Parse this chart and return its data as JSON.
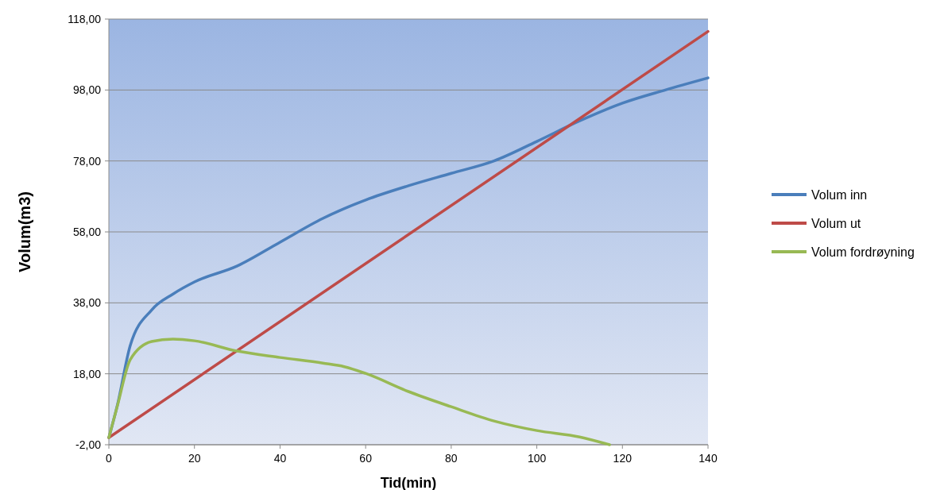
{
  "chart_data": {
    "type": "line",
    "xlabel": "Tid(min)",
    "ylabel": "Volum(m3)",
    "xlim": [
      0,
      140
    ],
    "xticks": [
      0,
      20,
      40,
      60,
      80,
      100,
      120,
      140
    ],
    "ylim": [
      -2,
      118
    ],
    "yticks": [
      {
        "value": -2,
        "label": "-2,00"
      },
      {
        "value": 18,
        "label": "18,00"
      },
      {
        "value": 38,
        "label": "38,00"
      },
      {
        "value": 58,
        "label": "58,00"
      },
      {
        "value": 78,
        "label": "78,00"
      },
      {
        "value": 98,
        "label": "98,00"
      },
      {
        "value": 118,
        "label": "118,00"
      }
    ],
    "grid": "y",
    "legend": "right",
    "marker": "none",
    "line_style": "solid",
    "series": [
      {
        "name": "Volum inn",
        "color": "#4a7ebb",
        "x": [
          0,
          2,
          5,
          10,
          15,
          20,
          30,
          40,
          50,
          60,
          70,
          80,
          90,
          100,
          110,
          120,
          130,
          140
        ],
        "values": [
          0,
          9.2,
          26,
          36,
          40.5,
          43.9,
          48.4,
          55.1,
          61.8,
          67,
          71,
          74.5,
          78,
          83.5,
          89.3,
          94.3,
          98,
          101.4
        ]
      },
      {
        "name": "Volum ut",
        "color": "#be4b48",
        "x": [
          0,
          140
        ],
        "values": [
          0,
          114.5
        ]
      },
      {
        "name": "Volum fordrøyning",
        "color": "#98b954",
        "x": [
          0,
          2,
          5,
          10,
          15,
          20,
          30,
          40,
          50,
          55,
          60,
          70,
          80,
          90,
          100,
          110,
          117
        ],
        "values": [
          0,
          9,
          22,
          27.1,
          27.8,
          27.3,
          24.4,
          22.6,
          21,
          20,
          18.1,
          13,
          8.7,
          4.7,
          2,
          0.2,
          -2
        ]
      }
    ]
  }
}
